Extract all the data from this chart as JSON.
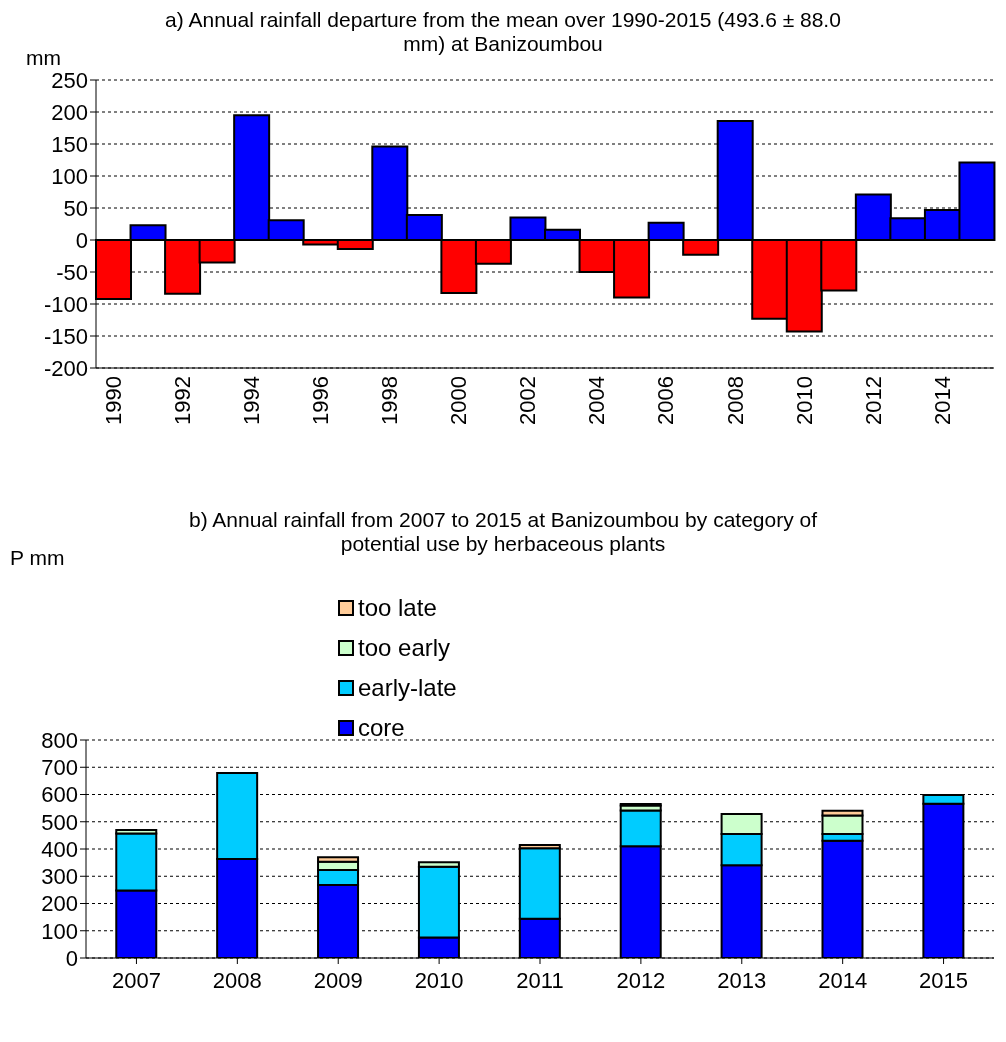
{
  "chart_data": [
    {
      "type": "bar",
      "title": "a) Annual rainfall departure from the mean over 1990-2015 (493.6 ± 88.0 mm) at Banizoumbou",
      "ylabel": "mm",
      "categories": [
        "1990",
        null,
        "1992",
        null,
        "1994",
        null,
        "1996",
        null,
        "1998",
        null,
        "2000",
        null,
        "2002",
        null,
        "2004",
        null,
        "2006",
        null,
        "2008",
        null,
        "2010",
        null,
        "2012",
        null,
        "2014",
        null
      ],
      "values": [
        -92,
        23,
        -84,
        -35,
        195,
        31,
        -7,
        -14,
        146,
        39,
        -83,
        -37,
        35,
        16,
        -50,
        -90,
        27,
        -23,
        186,
        -123,
        -143,
        -79,
        71,
        34,
        47,
        121
      ],
      "colors": [
        "#ff0000",
        "#0000ff",
        "#ff0000",
        "#ff0000",
        "#0000ff",
        "#0000ff",
        "#ff0000",
        "#ff0000",
        "#0000ff",
        "#0000ff",
        "#ff0000",
        "#ff0000",
        "#0000ff",
        "#0000ff",
        "#ff0000",
        "#ff0000",
        "#0000ff",
        "#ff0000",
        "#0000ff",
        "#ff0000",
        "#ff0000",
        "#ff0000",
        "#0000ff",
        "#0000ff",
        "#0000ff",
        "#0000ff"
      ],
      "ylim": [
        -200,
        250
      ],
      "yticks": [
        -200,
        -150,
        -100,
        -50,
        0,
        50,
        100,
        150,
        200,
        250
      ],
      "grid": "y",
      "legend": false
    },
    {
      "type": "bar",
      "title": "b) Annual rainfall from 2007 to 2015 at Banizoumbou by category of potential use by herbaceous plants",
      "ylabel": "P mm",
      "categories": [
        "2007",
        "2008",
        "2009",
        "2010",
        "2011",
        "2012",
        "2013",
        "2014",
        "2015"
      ],
      "stacked": true,
      "series": [
        {
          "name": "core",
          "color": "#0000ff",
          "values": [
            248,
            363,
            268,
            75,
            144,
            410,
            340,
            430,
            566
          ]
        },
        {
          "name": "early-late",
          "color": "#00ccff",
          "values": [
            209,
            316,
            55,
            260,
            259,
            131,
            115,
            25,
            32
          ]
        },
        {
          "name": "too early",
          "color": "#ccffcc",
          "values": [
            13,
            0,
            30,
            16,
            0,
            19,
            73,
            68,
            0
          ]
        },
        {
          "name": "too late",
          "color": "#ffcc99",
          "values": [
            0,
            0,
            17,
            0,
            12,
            5,
            0,
            17,
            0
          ]
        }
      ],
      "ylim": [
        0,
        800
      ],
      "yticks": [
        0,
        100,
        200,
        300,
        400,
        500,
        600,
        700,
        800
      ],
      "grid": "y",
      "legend": "top"
    }
  ]
}
